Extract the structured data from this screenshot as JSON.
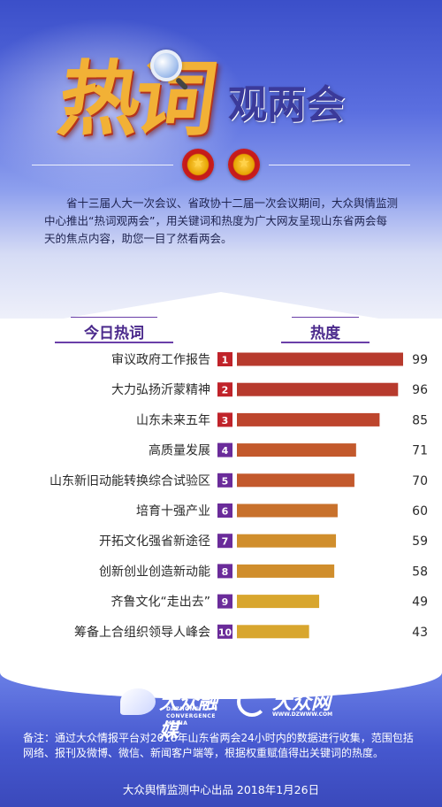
{
  "header": {
    "title_char": "热词",
    "title_rest": "观两会",
    "intro": "省十三届人大一次会议、省政协十二届一次会议期间，大众舆情监测中心推出“热词观两会”，用关键词和热度为广大网友呈现山东省两会每天的焦点内容，助您一目了然看两会。"
  },
  "columns": {
    "word": "今日热词",
    "heat": "热度"
  },
  "chart_data": {
    "type": "bar",
    "orientation": "horizontal",
    "categories": [
      "审议政府工作报告",
      "大力弘扬沂蒙精神",
      "山东未来五年",
      "高质量发展",
      "山东新旧动能转换综合试验区",
      "培育十强产业",
      "开拓文化强省新途径",
      "创新创业创造新动能",
      "齐鲁文化“走出去”",
      "筹备上合组织领导人峰会"
    ],
    "ranks": [
      "1",
      "2",
      "3",
      "4",
      "5",
      "6",
      "7",
      "8",
      "9",
      "10"
    ],
    "values": [
      99,
      96,
      85,
      71,
      70,
      60,
      59,
      58,
      49,
      43
    ],
    "xlim": [
      0,
      99
    ],
    "bar_colors": [
      "#b73a2d",
      "#b73a2d",
      "#bd452d",
      "#c3592c",
      "#c3592c",
      "#c8712c",
      "#d08e2c",
      "#d08e2c",
      "#d8a62e",
      "#d8a62e"
    ],
    "rank_colors": [
      "#c0232a",
      "#c0232a",
      "#c0232a",
      "#6a2b9a",
      "#6a2b9a",
      "#6a2b9a",
      "#6a2b9a",
      "#6a2b9a",
      "#6a2b9a",
      "#6a2b9a"
    ]
  },
  "footer": {
    "logo1_text": "大众融媒",
    "logo1_sub1": "DAZHONG",
    "logo1_sub2": "CONVERGENCE MEDIA",
    "logo2_text": "大众网",
    "logo2_url": "WWW.DZWWW.COM",
    "note": "备注：通过大众情报平台对2018年山东省两会24小时内的数据进行收集，范围包括网络、报刊及微博、微信、新闻客户端等，根据权重赋值得出关键词的热度。",
    "credit": "大众舆情监测中心出品 2018年1月26日"
  },
  "colors": {
    "header_blue": "#3b4fc9",
    "title_orange": "#f2b136",
    "title_purple": "#3b3a9a",
    "accent_purple": "#4b2a8c"
  }
}
